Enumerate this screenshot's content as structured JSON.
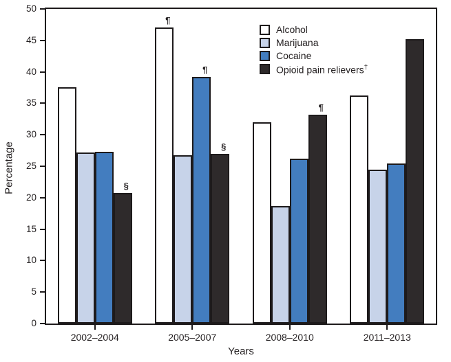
{
  "chart_data": {
    "type": "bar",
    "title": "",
    "xlabel": "Years",
    "ylabel": "Percentage",
    "ylim": [
      0,
      50
    ],
    "ytick_step": 5,
    "grid": false,
    "legend_position": "top-center-inside",
    "background": "#ffffff",
    "ink_color": "#1d1a1b",
    "categories": [
      "2002–2004",
      "2005–2007",
      "2008–2010",
      "2011–2013"
    ],
    "series": [
      {
        "name": "Alcohol",
        "suffix": "",
        "color": "#ffffff",
        "values": [
          37.6,
          47.1,
          32.0,
          36.2
        ]
      },
      {
        "name": "Marijuana",
        "suffix": "",
        "color": "#c7d3e9",
        "values": [
          27.2,
          26.7,
          18.7,
          24.5
        ]
      },
      {
        "name": "Cocaine",
        "suffix": "",
        "color": "#437dbf",
        "values": [
          27.3,
          39.2,
          26.2,
          25.4
        ]
      },
      {
        "name": "Opioid pain relievers",
        "suffix": "†",
        "color": "#2e2a2b",
        "values": [
          20.7,
          27.0,
          33.2,
          45.2
        ]
      }
    ],
    "annotations": [
      {
        "category_index": 0,
        "series_index": 3,
        "symbol": "§"
      },
      {
        "category_index": 1,
        "series_index": 0,
        "symbol": "¶"
      },
      {
        "category_index": 1,
        "series_index": 2,
        "symbol": "¶"
      },
      {
        "category_index": 1,
        "series_index": 3,
        "symbol": "§"
      },
      {
        "category_index": 2,
        "series_index": 3,
        "symbol": "¶"
      }
    ]
  }
}
